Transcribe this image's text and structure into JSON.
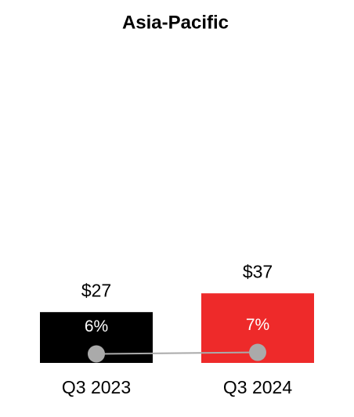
{
  "chart_data": {
    "type": "bar",
    "title": "Asia-Pacific",
    "categories": [
      "Q3 2023",
      "Q3 2024"
    ],
    "series": [
      {
        "type": "bar",
        "values": [
          27,
          37
        ],
        "value_labels": [
          "$27",
          "$37"
        ],
        "colors": [
          "#000000",
          "#ee2a2a"
        ]
      },
      {
        "type": "line",
        "axis": "y2",
        "values": [
          6,
          7
        ],
        "value_labels": [
          "6%",
          "7%"
        ],
        "color": "#aaaaaa"
      }
    ],
    "ylim": [
      0,
      160
    ],
    "y2lim": [
      0,
      200
    ]
  }
}
